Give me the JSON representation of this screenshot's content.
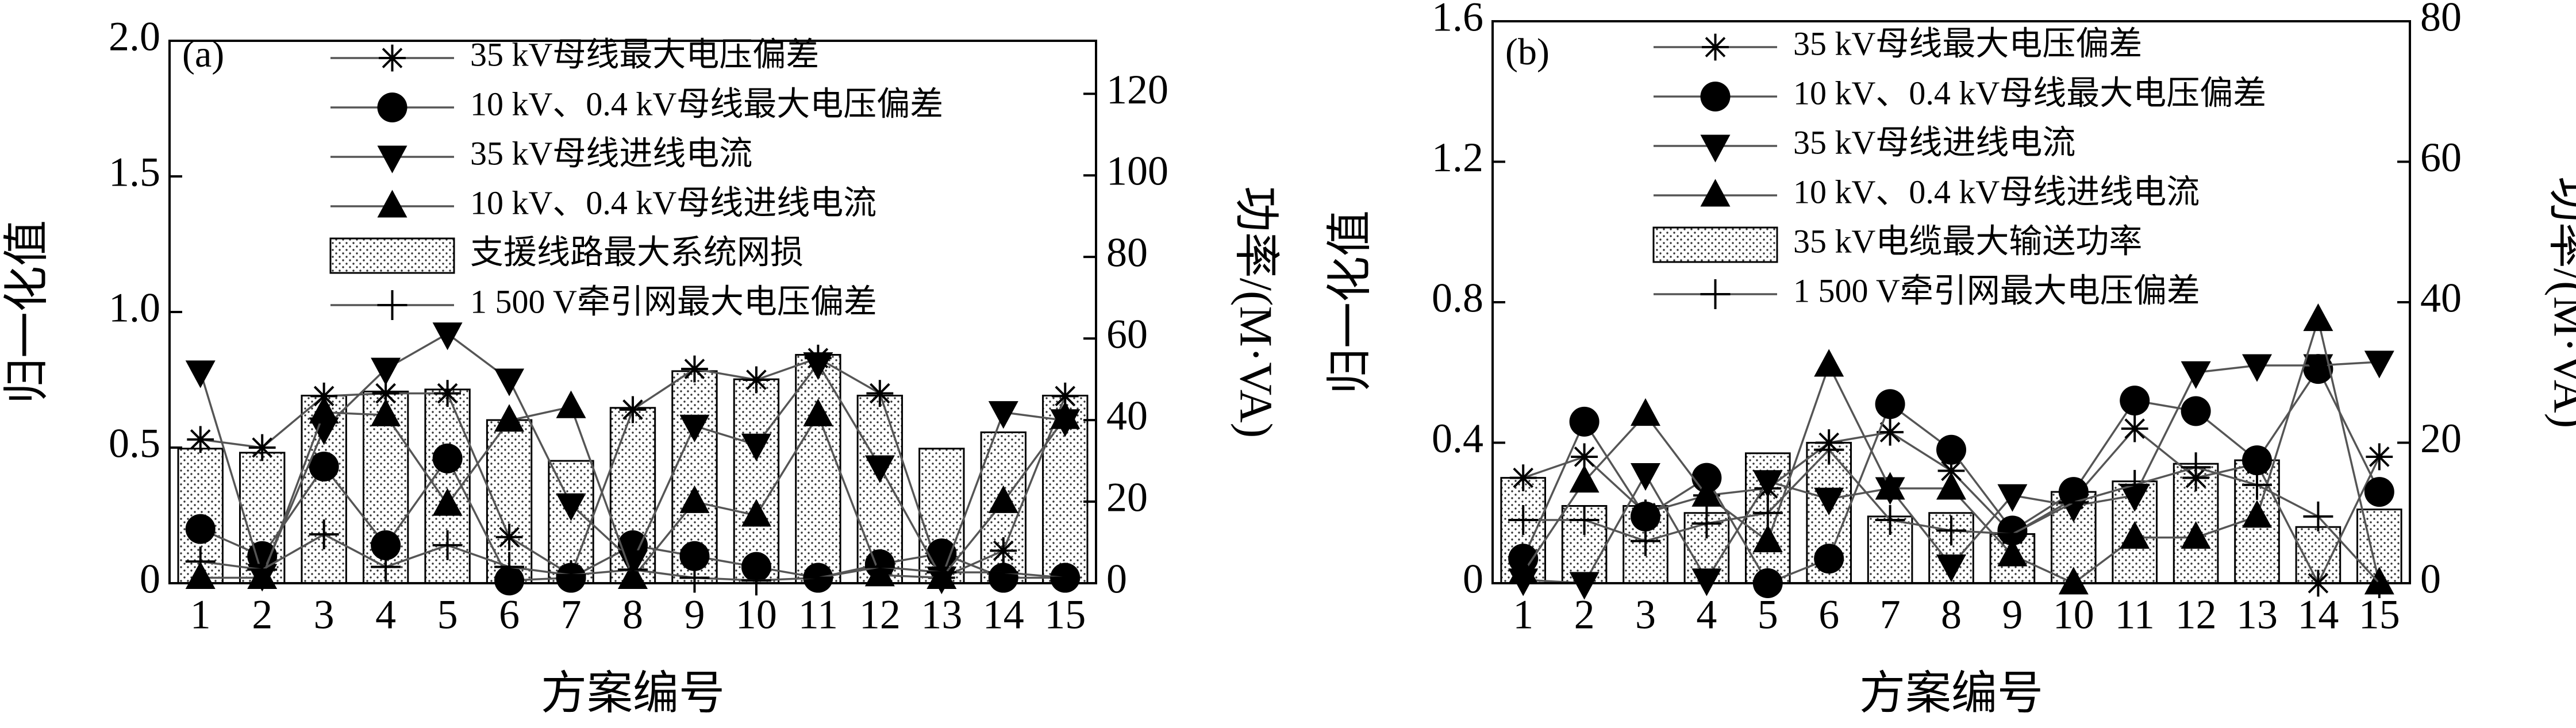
{
  "chart_data": [
    {
      "type": "combo",
      "panel_label": "(a)",
      "x_label": "方案编号",
      "y_label": "归一化值",
      "y2_label": "功率/(M·VA)",
      "categories": [
        "1",
        "2",
        "3",
        "4",
        "5",
        "6",
        "7",
        "8",
        "9",
        "10",
        "11",
        "12",
        "13",
        "14",
        "15"
      ],
      "ylim": [
        0,
        2.0
      ],
      "yticks": [
        0,
        0.5,
        {
          "value": 1,
          "label": "1.0"
        },
        1.5,
        {
          "value": 2,
          "label": "2.0"
        }
      ],
      "y2lim": [
        0,
        133
      ],
      "y2ticks": [
        0,
        20,
        40,
        60,
        80,
        100,
        120
      ],
      "legend": "upper left",
      "series": [
        {
          "name": "35 kV母线最大电压偏差",
          "type": "line",
          "marker": "asterisk",
          "color": "#555555",
          "values": [
            0.53,
            0.5,
            0.69,
            0.7,
            0.7,
            0.17,
            0.03,
            0.64,
            0.79,
            0.75,
            0.83,
            0.7,
            0.02,
            0.12,
            0.69
          ]
        },
        {
          "name": "10 kV、0.4 kV母线最大电压偏差",
          "type": "line",
          "marker": "circle",
          "color": "#555555",
          "values": [
            0.2,
            0.1,
            0.43,
            0.14,
            0.46,
            0.01,
            0.02,
            0.14,
            0.1,
            0.06,
            0.02,
            0.07,
            0.11,
            0.02,
            0.02
          ]
        },
        {
          "name": "35 kV母线进线电流",
          "type": "line",
          "marker": "triangle-down",
          "color": "#555555",
          "values": [
            0.78,
            0.03,
            0.57,
            0.79,
            0.92,
            0.75,
            0.29,
            0.08,
            0.58,
            0.51,
            0.81,
            0.43,
            0.02,
            0.63,
            0.6
          ]
        },
        {
          "name": "10 kV、0.4 kV母线进线电流",
          "type": "line",
          "marker": "triangle-up",
          "color": "#555555",
          "values": [
            0.02,
            0.02,
            0.63,
            0.62,
            0.29,
            0.6,
            0.65,
            0.02,
            0.3,
            0.25,
            0.62,
            0.03,
            0.02,
            0.3,
            0.61
          ]
        },
        {
          "name": "支援线路最大系统网损",
          "type": "bar",
          "axis": "y2",
          "color": "#ffffff",
          "values": [
            33,
            32,
            46,
            47,
            47.5,
            40,
            30,
            43,
            52,
            50,
            56,
            46,
            33,
            37,
            46
          ]
        },
        {
          "name": "1 500 V牵引网最大电压偏差",
          "type": "line",
          "marker": "plus",
          "color": "#555555",
          "values": [
            0.08,
            0.05,
            0.18,
            0.06,
            0.14,
            0.06,
            0.03,
            0.05,
            0.02,
            0.01,
            0.02,
            0.06,
            0.04,
            0.04,
            0.02
          ]
        }
      ]
    },
    {
      "type": "combo",
      "panel_label": "(b)",
      "x_label": "方案编号",
      "y_label": "归一化值",
      "y2_label": "功率/(M·VA)",
      "categories": [
        "1",
        "2",
        "3",
        "4",
        "5",
        "6",
        "7",
        "8",
        "9",
        "10",
        "11",
        "12",
        "13",
        "14",
        "15"
      ],
      "ylim": [
        0,
        1.6
      ],
      "yticks": [
        0,
        0.4,
        0.8,
        1.2,
        1.6
      ],
      "y2lim": [
        0,
        80
      ],
      "y2ticks": [
        0,
        20,
        40,
        60,
        80
      ],
      "legend": "upper left",
      "series": [
        {
          "name": "35 kV母线最大电压偏差",
          "type": "line",
          "marker": "asterisk",
          "color": "#555555",
          "values": [
            0.3,
            0.36,
            0.2,
            0.25,
            0.27,
            0.4,
            0.43,
            0.32,
            0.14,
            0.24,
            0.44,
            0.3,
            0.34,
            0.0,
            0.36
          ]
        },
        {
          "name": "10 kV、0.4 kV母线最大电压偏差",
          "type": "line",
          "marker": "circle",
          "color": "#555555",
          "values": [
            0.07,
            0.46,
            0.19,
            0.3,
            0.0,
            0.07,
            0.51,
            0.38,
            0.15,
            0.26,
            0.52,
            0.49,
            0.35,
            0.61,
            0.26
          ]
        },
        {
          "name": "35 kV母线进线电流",
          "type": "line",
          "marker": "triangle-down",
          "color": "#555555",
          "values": [
            0.01,
            0.0,
            0.31,
            0.01,
            0.29,
            0.24,
            0.27,
            0.05,
            0.25,
            0.22,
            0.25,
            0.6,
            0.62,
            0.62,
            0.63
          ]
        },
        {
          "name": "10 kV、0.4 kV母线进线电流",
          "type": "line",
          "marker": "triangle-up",
          "color": "#555555",
          "values": [
            0.03,
            0.29,
            0.48,
            0.25,
            0.12,
            0.62,
            0.27,
            0.27,
            0.08,
            0.0,
            0.13,
            0.13,
            0.19,
            0.75,
            0.0
          ]
        },
        {
          "name": "35 kV电缆最大输送功率",
          "type": "bar",
          "axis": "y2",
          "color": "#ffffff",
          "values": [
            15,
            11,
            11,
            10,
            18.5,
            20,
            9.5,
            10,
            7,
            13,
            14.5,
            17,
            17.5,
            8,
            10.5
          ]
        },
        {
          "name": "1 500 V牵引网最大电压偏差",
          "type": "line",
          "marker": "plus",
          "color": "#555555",
          "values": [
            0.18,
            0.18,
            0.12,
            0.17,
            0.2,
            0.38,
            0.18,
            0.15,
            0.14,
            0.23,
            0.28,
            0.33,
            0.28,
            0.19,
            0.0
          ]
        }
      ]
    }
  ]
}
